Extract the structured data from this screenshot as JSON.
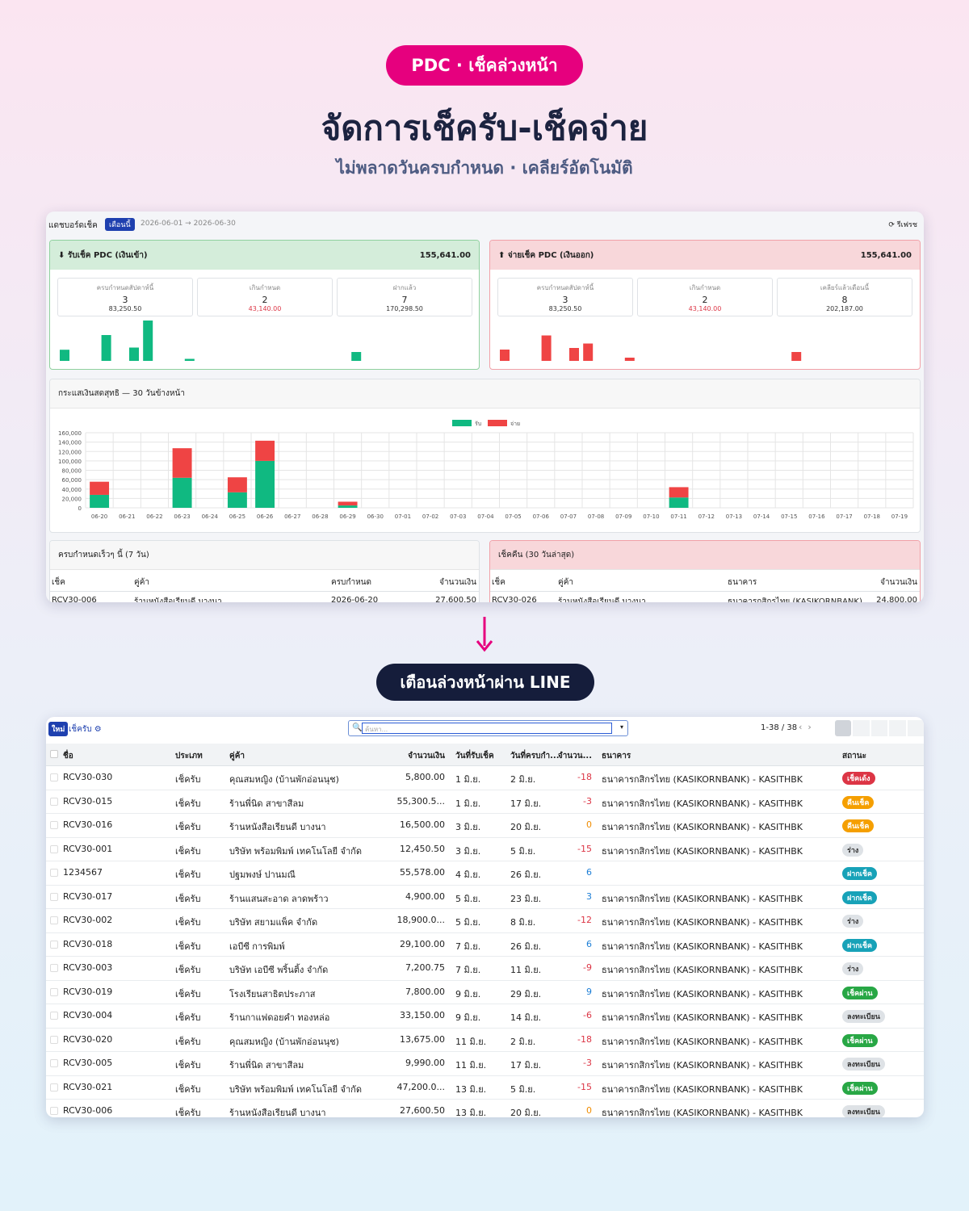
{
  "hero": {
    "badge": "PDC · เช็คล่วงหน้า",
    "title": "จัดการเช็ครับ-เช็คจ่าย",
    "subtitle": "ไม่พลาดวันครบกำหนด · เคลียร์อัตโนมัติ"
  },
  "dashboard": {
    "title": "แดชบอร์ดเช็ค",
    "period_badge": "เดือนนี้",
    "range": "2026-06-01 → 2026-06-30",
    "refresh": "รีเฟรช",
    "cards": [
      {
        "title": "รับเช็ค PDC (เงินเข้า)",
        "total": "155,641.00",
        "stats": [
          {
            "label": "ครบกำหนดสัปดาห์นี้",
            "count": "3",
            "amount": "83,250.50"
          },
          {
            "label": "เกินกำหนด",
            "count": "2",
            "amount": "43,140.00"
          },
          {
            "label": "ฝากแล้ว",
            "count": "7",
            "amount": "170,298.50"
          }
        ]
      },
      {
        "title": "จ่ายเช็ค PDC (เงินออก)",
        "total": "155,641.00",
        "stats": [
          {
            "label": "ครบกำหนดสัปดาห์นี้",
            "count": "3",
            "amount": "83,250.50"
          },
          {
            "label": "เกินกำหนด",
            "count": "2",
            "amount": "43,140.00"
          },
          {
            "label": "เคลียร์แล้วเดือนนี้",
            "count": "8",
            "amount": "202,187.00"
          }
        ]
      }
    ],
    "upcoming": {
      "title": "ครบกำหนดเร็วๆ นี้ (7 วัน)",
      "columns": [
        "เช็ค",
        "คู่ค้า",
        "ครบกำหนด",
        "จำนวนเงิน"
      ],
      "rows": [
        [
          "RCV30-006",
          "ร้านหนังสือเรียนดี บางนา",
          "2026-06-20",
          "27,600.50"
        ]
      ]
    },
    "bounced": {
      "title": "เช็คคืน (30 วันล่าสุด)",
      "columns": [
        "เช็ค",
        "คู่ค้า",
        "ธนาคาร",
        "จำนวนเงิน"
      ],
      "rows": [
        [
          "RCV30-026",
          "ร้านหนังสือเรียนดี บางนา",
          "ธนาคารกสิกรไทย (KASIKORNBANK)",
          "24,800.00"
        ]
      ]
    }
  },
  "chart_data": {
    "type": "bar",
    "stacked": true,
    "title": "กระแสเงินสดสุทธิ — 30 วันข้างหน้า",
    "legend": "top",
    "grid": true,
    "categories": [
      "06-20",
      "06-21",
      "06-22",
      "06-23",
      "06-24",
      "06-25",
      "06-26",
      "06-27",
      "06-28",
      "06-29",
      "06-30",
      "07-01",
      "07-02",
      "07-03",
      "07-04",
      "07-05",
      "07-06",
      "07-07",
      "07-08",
      "07-09",
      "07-10",
      "07-11",
      "07-12",
      "07-13",
      "07-14",
      "07-15",
      "07-16",
      "07-17",
      "07-18",
      "07-19"
    ],
    "series": [
      {
        "name": "รับ",
        "color": "#10b981",
        "values": [
          27600,
          0,
          0,
          64000,
          0,
          33000,
          100000,
          0,
          0,
          5000,
          0,
          0,
          0,
          0,
          0,
          0,
          0,
          0,
          0,
          0,
          0,
          22000,
          0,
          0,
          0,
          0,
          0,
          0,
          0,
          0
        ]
      },
      {
        "name": "จ่าย",
        "color": "#ef4444",
        "values": [
          28000,
          0,
          0,
          63000,
          0,
          32000,
          43000,
          0,
          0,
          8000,
          0,
          0,
          0,
          0,
          0,
          0,
          0,
          0,
          0,
          0,
          0,
          22000,
          0,
          0,
          0,
          0,
          0,
          0,
          0,
          0
        ]
      }
    ],
    "ylim": [
      0,
      160000
    ],
    "yticks": [
      0,
      {
        "value": 20000,
        "label": "20,000"
      },
      {
        "value": 40000,
        "label": "40,000"
      },
      {
        "value": 60000,
        "label": "60,000"
      },
      {
        "value": 80000,
        "label": "80,000"
      },
      {
        "value": 100000,
        "label": "100,000"
      },
      {
        "value": 120000,
        "label": "120,000"
      },
      {
        "value": 140000,
        "label": "140,000"
      },
      {
        "value": 160000,
        "label": "160,000"
      }
    ]
  },
  "notify": {
    "label": "เตือนล่วงหน้าผ่าน LINE"
  },
  "list": {
    "new_button": "ใหม่",
    "breadcrumb": "เช็ครับ",
    "search_placeholder": "ค้นหา...",
    "pager": "1-38 / 38",
    "columns": [
      "ชื่อ",
      "ประเภท",
      "คู่ค้า",
      "จำนวนเงิน",
      "วันที่รับเช็ค",
      "วันที่ครบกำ...",
      "จำนวน...",
      "ธนาคาร",
      "สถานะ"
    ],
    "rows": [
      [
        "RCV30-030",
        "เช็ครับ",
        "คุณสมหญิง (บ้านพักอ่อนนุช)",
        "5,800.00",
        "1 มิ.ย.",
        "2 มิ.ย.",
        "-18",
        "ธนาคารกสิกรไทย (KASIKORNBANK) - KASITHBK",
        "เช็คเด้ง"
      ],
      [
        "RCV30-015",
        "เช็ครับ",
        "ร้านพี่นิด สาขาสีลม",
        "55,300.5...",
        "1 มิ.ย.",
        "17 มิ.ย.",
        "-3",
        "ธนาคารกสิกรไทย (KASIKORNBANK) - KASITHBK",
        "คืนเช็ค"
      ],
      [
        "RCV30-016",
        "เช็ครับ",
        "ร้านหนังสือเรียนดี บางนา",
        "16,500.00",
        "3 มิ.ย.",
        "20 มิ.ย.",
        "0",
        "ธนาคารกสิกรไทย (KASIKORNBANK) - KASITHBK",
        "คืนเช็ค"
      ],
      [
        "RCV30-001",
        "เช็ครับ",
        "บริษัท พร้อมพิมพ์ เทคโนโลยี จำกัด",
        "12,450.50",
        "3 มิ.ย.",
        "5 มิ.ย.",
        "-15",
        "ธนาคารกสิกรไทย (KASIKORNBANK) - KASITHBK",
        "ร่าง"
      ],
      [
        "1234567",
        "เช็ครับ",
        "ปฐมพงษ์ ปานมณี",
        "55,578.00",
        "4 มิ.ย.",
        "26 มิ.ย.",
        "6",
        null,
        "ฝากเช็ค"
      ],
      [
        "RCV30-017",
        "เช็ครับ",
        "ร้านแสนสะอาด ลาดพร้าว",
        "4,900.00",
        "5 มิ.ย.",
        "23 มิ.ย.",
        "3",
        "ธนาคารกสิกรไทย (KASIKORNBANK) - KASITHBK",
        "ฝากเช็ค"
      ],
      [
        "RCV30-002",
        "เช็ครับ",
        "บริษัท สยามแพ็ค จำกัด",
        "18,900.0...",
        "5 มิ.ย.",
        "8 มิ.ย.",
        "-12",
        "ธนาคารกสิกรไทย (KASIKORNBANK) - KASITHBK",
        "ร่าง"
      ],
      [
        "RCV30-018",
        "เช็ครับ",
        "เอบีซี การพิมพ์",
        "29,100.00",
        "7 มิ.ย.",
        "26 มิ.ย.",
        "6",
        "ธนาคารกสิกรไทย (KASIKORNBANK) - KASITHBK",
        "ฝากเช็ค"
      ],
      [
        "RCV30-003",
        "เช็ครับ",
        "บริษัท เอบีซี พริ้นติ้ง จำกัด",
        "7,200.75",
        "7 มิ.ย.",
        "11 มิ.ย.",
        "-9",
        "ธนาคารกสิกรไทย (KASIKORNBANK) - KASITHBK",
        "ร่าง"
      ],
      [
        "RCV30-019",
        "เช็ครับ",
        "โรงเรียนสาธิตประภาส",
        "7,800.00",
        "9 มิ.ย.",
        "29 มิ.ย.",
        "9",
        "ธนาคารกสิกรไทย (KASIKORNBANK) - KASITHBK",
        "เช็คผ่าน"
      ],
      [
        "RCV30-004",
        "เช็ครับ",
        "ร้านกาแฟดอยคำ ทองหล่อ",
        "33,150.00",
        "9 มิ.ย.",
        "14 มิ.ย.",
        "-6",
        "ธนาคารกสิกรไทย (KASIKORNBANK) - KASITHBK",
        "ลงทะเบียน"
      ],
      [
        "RCV30-020",
        "เช็ครับ",
        "คุณสมหญิง (บ้านพักอ่อนนุช)",
        "13,675.00",
        "11 มิ.ย.",
        "2 มิ.ย.",
        "-18",
        "ธนาคารกสิกรไทย (KASIKORNBANK) - KASITHBK",
        "เช็คผ่าน"
      ],
      [
        "RCV30-005",
        "เช็ครับ",
        "ร้านพี่นิด สาขาสีลม",
        "9,990.00",
        "11 มิ.ย.",
        "17 มิ.ย.",
        "-3",
        "ธนาคารกสิกรไทย (KASIKORNBANK) - KASITHBK",
        "ลงทะเบียน"
      ],
      [
        "RCV30-021",
        "เช็ครับ",
        "บริษัท พร้อมพิมพ์ เทคโนโลยี จำกัด",
        "47,200.0...",
        "13 มิ.ย.",
        "5 มิ.ย.",
        "-15",
        "ธนาคารกสิกรไทย (KASIKORNBANK) - KASITHBK",
        "เช็คผ่าน"
      ],
      [
        "RCV30-006",
        "เช็ครับ",
        "ร้านหนังสือเรียนดี บางนา",
        "27,600.50",
        "13 มิ.ย.",
        "20 มิ.ย.",
        "0",
        "ธนาคารกสิกรไทย (KASIKORNBANK) - KASITHBK",
        "ลงทะเบียน"
      ]
    ],
    "status_colors": [
      "#dc3545",
      "#f59f00",
      "#f59f00",
      "#dee2e6",
      "#17a2b8",
      "#17a2b8",
      "#dee2e6",
      "#17a2b8",
      "#dee2e6",
      "#28a745",
      "#dee2e6",
      "#28a745",
      "#dee2e6",
      "#28a745",
      "#dee2e6"
    ]
  }
}
